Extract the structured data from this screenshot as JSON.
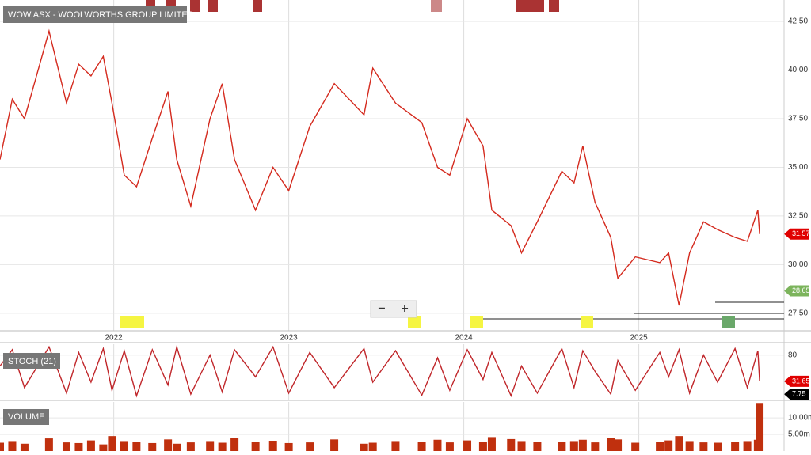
{
  "zoom_controls": [
    "−",
    "+"
  ],
  "chart_data": [
    {
      "type": "line",
      "title": "WOW.ASX - WOOLWORTHS GROUP LIMITED",
      "color": "#d42a1e",
      "x": [
        2021.35,
        2021.42,
        2021.49,
        2021.63,
        2021.73,
        2021.8,
        2021.87,
        2021.94,
        2021.99,
        2022.06,
        2022.13,
        2022.22,
        2022.31,
        2022.36,
        2022.44,
        2022.55,
        2022.62,
        2022.69,
        2022.81,
        2022.91,
        2023.0,
        2023.12,
        2023.26,
        2023.43,
        2023.48,
        2023.61,
        2023.76,
        2023.85,
        2023.92,
        2024.02,
        2024.11,
        2024.16,
        2024.27,
        2024.33,
        2024.42,
        2024.56,
        2024.63,
        2024.68,
        2024.75,
        2024.84,
        2024.88,
        2024.98,
        2025.12,
        2025.17,
        2025.23,
        2025.29,
        2025.37,
        2025.45,
        2025.55,
        2025.62,
        2025.68,
        2025.69
      ],
      "values": [
        35.4,
        38.5,
        37.5,
        42.0,
        38.3,
        40.3,
        39.7,
        40.7,
        38.3,
        34.6,
        34.0,
        36.5,
        38.9,
        35.4,
        33.0,
        37.5,
        39.3,
        35.4,
        32.8,
        35.0,
        33.8,
        37.1,
        39.3,
        37.7,
        40.1,
        38.3,
        37.3,
        35.0,
        34.6,
        37.5,
        36.1,
        32.8,
        32.0,
        30.6,
        32.2,
        34.8,
        34.2,
        36.1,
        33.2,
        31.4,
        29.3,
        30.4,
        30.1,
        30.6,
        27.9,
        30.6,
        32.2,
        31.8,
        31.4,
        31.2,
        32.8,
        31.57
      ],
      "xlim": [
        2021.35,
        2025.83
      ],
      "xticks": [
        2022,
        2023,
        2024,
        2025
      ],
      "ylim": [
        26.6,
        43.6
      ],
      "yticks": [
        {
          "value": 27.5,
          "label": "27.50"
        },
        {
          "value": 30,
          "label": "30.00"
        },
        {
          "value": 32.5,
          "label": "32.50"
        },
        {
          "value": 35,
          "label": "35.00"
        },
        {
          "value": 37.5,
          "label": "37.50"
        },
        {
          "value": 40,
          "label": "40.00"
        },
        {
          "value": 42.5,
          "label": "42.50"
        }
      ],
      "grid": true,
      "price_tags": [
        {
          "value": 31.57,
          "color": "#e00000"
        },
        {
          "value": 28.655,
          "color": "#7cb45c"
        }
      ]
    },
    {
      "type": "line",
      "title": "STOCH (21)",
      "color": "#c0262a",
      "x": [
        2021.35,
        2021.42,
        2021.49,
        2021.63,
        2021.73,
        2021.8,
        2021.87,
        2021.94,
        2021.99,
        2022.06,
        2022.13,
        2022.22,
        2022.31,
        2022.36,
        2022.44,
        2022.55,
        2022.62,
        2022.69,
        2022.81,
        2022.91,
        2023.0,
        2023.12,
        2023.26,
        2023.43,
        2023.48,
        2023.61,
        2023.76,
        2023.85,
        2023.92,
        2024.02,
        2024.11,
        2024.16,
        2024.27,
        2024.33,
        2024.42,
        2024.56,
        2024.63,
        2024.68,
        2024.75,
        2024.84,
        2024.88,
        2024.98,
        2025.12,
        2025.17,
        2025.23,
        2025.29,
        2025.37,
        2025.45,
        2025.55,
        2025.62,
        2025.68,
        2025.69
      ],
      "values": [
        60,
        90,
        20,
        95,
        10,
        85,
        30,
        92,
        15,
        88,
        5,
        90,
        25,
        95,
        8,
        80,
        12,
        90,
        40,
        95,
        10,
        85,
        20,
        92,
        30,
        88,
        6,
        75,
        15,
        90,
        35,
        85,
        5,
        60,
        10,
        92,
        20,
        88,
        50,
        8,
        70,
        15,
        85,
        40,
        90,
        10,
        80,
        30,
        92,
        20,
        88,
        31.65
      ],
      "xlim": [
        2021.35,
        2025.83
      ],
      "ylim": [
        -2,
        100
      ],
      "yticks": [
        80
      ],
      "grid": true,
      "price_tags": [
        {
          "value": 31.65,
          "color": "#e00000"
        },
        {
          "value": 7.75,
          "color": "#000000"
        }
      ]
    },
    {
      "type": "bar",
      "title": "VOLUME",
      "color": "#c0300e",
      "x": [
        2021.35,
        2021.42,
        2021.49,
        2021.63,
        2021.73,
        2021.8,
        2021.87,
        2021.94,
        2021.99,
        2022.06,
        2022.13,
        2022.22,
        2022.31,
        2022.36,
        2022.44,
        2022.55,
        2022.62,
        2022.69,
        2022.81,
        2022.91,
        2023.0,
        2023.12,
        2023.26,
        2023.43,
        2023.48,
        2023.61,
        2023.76,
        2023.85,
        2023.92,
        2024.02,
        2024.11,
        2024.16,
        2024.27,
        2024.33,
        2024.42,
        2024.56,
        2024.63,
        2024.68,
        2024.75,
        2024.84,
        2024.88,
        2024.98,
        2025.12,
        2025.17,
        2025.23,
        2025.29,
        2025.37,
        2025.45,
        2025.55,
        2025.62,
        2025.68,
        2025.69
      ],
      "values": [
        2.5,
        3.0,
        2.2,
        3.8,
        2.6,
        2.4,
        3.2,
        2.0,
        4.5,
        3.0,
        2.8,
        2.4,
        3.5,
        2.2,
        2.6,
        3.0,
        2.5,
        4.0,
        2.8,
        3.1,
        2.4,
        2.6,
        3.5,
        2.2,
        2.5,
        3.0,
        2.7,
        3.4,
        2.6,
        3.2,
        2.8,
        4.2,
        3.6,
        3.0,
        2.7,
        2.8,
        3.0,
        3.4,
        2.6,
        4.0,
        3.5,
        2.5,
        2.8,
        3.2,
        4.5,
        3.0,
        2.6,
        2.5,
        2.8,
        3.0,
        3.4,
        14.5
      ],
      "xlim": [
        2021.35,
        2025.83
      ],
      "ylim": [
        0,
        14.8
      ],
      "yticks": [
        {
          "value": 5,
          "label": "5.00m"
        },
        {
          "value": 10,
          "label": "10.00m"
        }
      ],
      "grid": true
    }
  ]
}
